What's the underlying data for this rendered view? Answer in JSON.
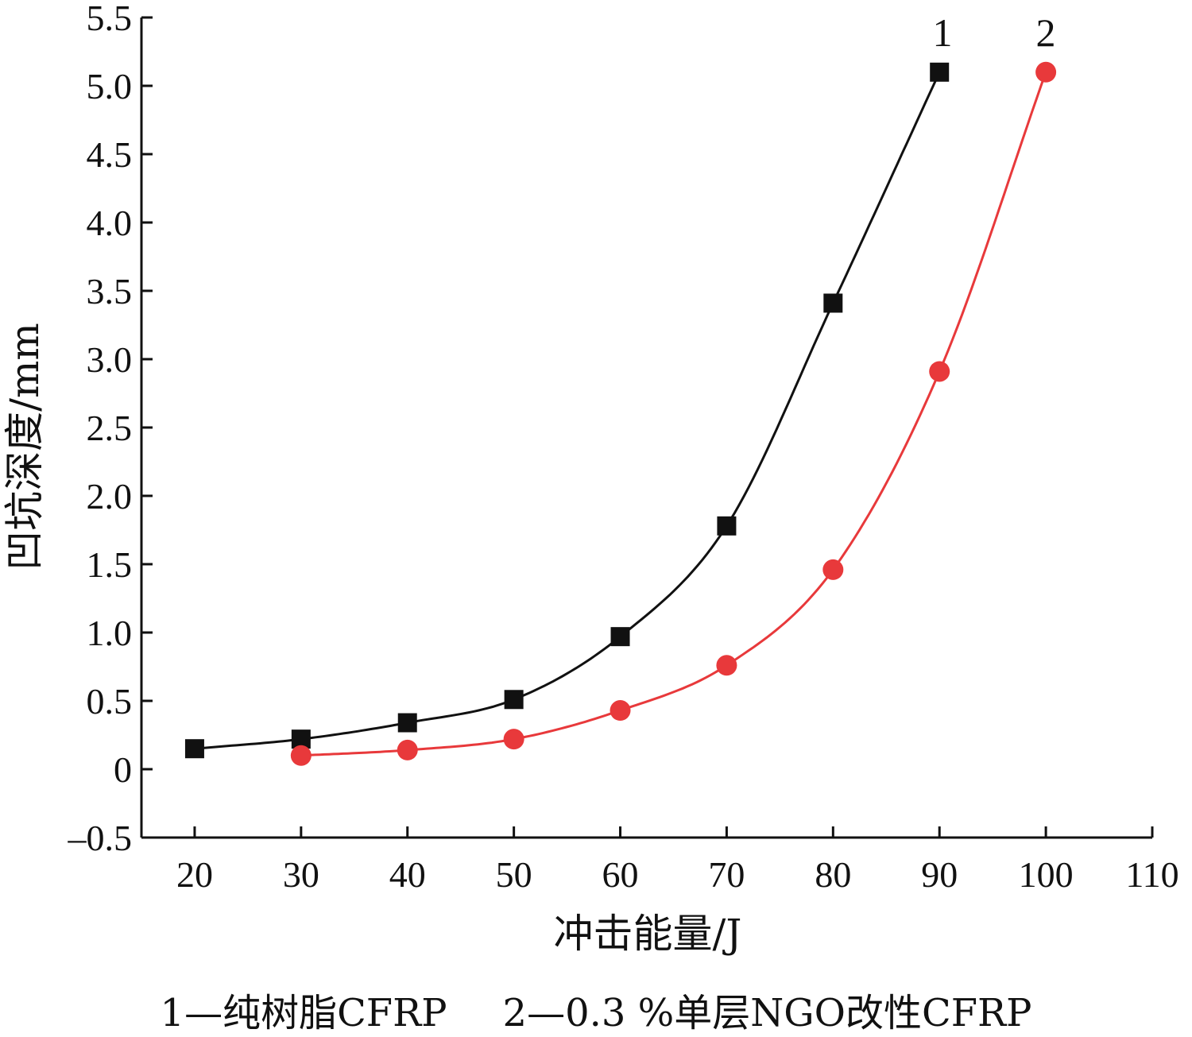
{
  "chart_data": {
    "type": "scatter",
    "xlabel": "冲击能量/J",
    "ylabel": "凹坑深度/mm",
    "xlim": [
      15,
      110
    ],
    "ylim": [
      -0.5,
      5.5
    ],
    "x_ticks": [
      "20",
      "30",
      "40",
      "50",
      "60",
      "70",
      "80",
      "90",
      "100",
      "110"
    ],
    "y_ticks": [
      "-0.5",
      "0",
      "0.5",
      "1.0",
      "1.5",
      "2.0",
      "2.5",
      "3.0",
      "3.5",
      "4.0",
      "4.5",
      "5.0",
      "5.5"
    ],
    "grid": false,
    "series": [
      {
        "name": "1",
        "marker": "square",
        "color": "#111111",
        "fit_line": true,
        "x": [
          20,
          30,
          40,
          50,
          60,
          70,
          80,
          90
        ],
        "y": [
          0.15,
          0.22,
          0.34,
          0.51,
          0.97,
          1.78,
          3.41,
          5.1
        ]
      },
      {
        "name": "2",
        "marker": "circle",
        "color": "#e8393b",
        "fit_line": true,
        "x": [
          30,
          40,
          50,
          60,
          70,
          80,
          90,
          100
        ],
        "y": [
          0.1,
          0.14,
          0.22,
          0.43,
          0.76,
          1.46,
          2.91,
          5.1
        ]
      }
    ]
  },
  "legend": {
    "entry1": "1—纯树脂CFRP",
    "entry2": "2—0.3 %单层NGO改性CFRP"
  }
}
